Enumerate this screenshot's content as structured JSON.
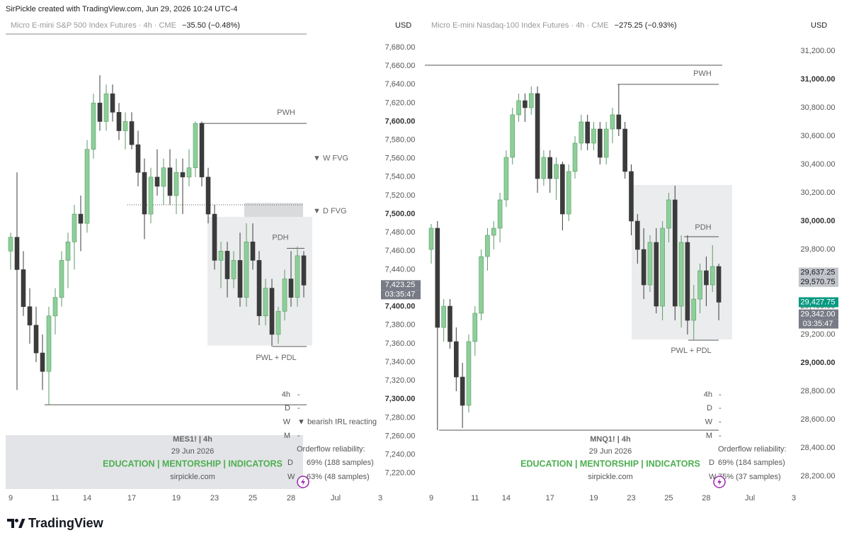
{
  "header": "SirPickle created with TradingView.com, Jun 29, 2026 10:24 UTC-4",
  "footer_logo": "TradingView",
  "chart_data": [
    {
      "type": "candlestick",
      "symbol": "Micro E-mini S&P 500 Index Futures · 4h · CME",
      "change": "−35.50 (−0.48%)",
      "currency": "USD",
      "up_color": "#8ccf98",
      "up_wick": "#5a9a66",
      "down_color": "#3b3b3b",
      "level_color": "#555555",
      "ylim": [
        7203,
        7693
      ],
      "yticks": [
        {
          "value": 7220,
          "label": "7,220.00"
        },
        {
          "value": 7240,
          "label": "7,240.00"
        },
        {
          "value": 7260,
          "label": "7,260.00"
        },
        {
          "value": 7280,
          "label": "7,280.00"
        },
        {
          "value": 7300,
          "label": "7,300.00"
        },
        {
          "value": 7320,
          "label": "7,320.00"
        },
        {
          "value": 7340,
          "label": "7,340.00"
        },
        {
          "value": 7360,
          "label": "7,360.00"
        },
        {
          "value": 7380,
          "label": "7,380.00"
        },
        {
          "value": 7400,
          "label": "7,400.00"
        },
        {
          "value": 7420,
          "label": "7,420.00"
        },
        {
          "value": 7440,
          "label": "7,440.00"
        },
        {
          "value": 7460,
          "label": "7,460.00"
        },
        {
          "value": 7480,
          "label": "7,480.00"
        },
        {
          "value": 7500,
          "label": "7,500.00"
        },
        {
          "value": 7520,
          "label": "7,520.00"
        },
        {
          "value": 7540,
          "label": "7,540.00"
        },
        {
          "value": 7560,
          "label": "7,560.00"
        },
        {
          "value": 7580,
          "label": "7,580.00"
        },
        {
          "value": 7600,
          "label": "7,600.00"
        },
        {
          "value": 7620,
          "label": "7,620.00"
        },
        {
          "value": 7640,
          "label": "7,640.00"
        },
        {
          "value": 7660,
          "label": "7,660.00"
        },
        {
          "value": 7680,
          "label": "7,680.00"
        }
      ],
      "categories": [
        "9",
        null,
        null,
        null,
        null,
        null,
        null,
        "11",
        null,
        null,
        null,
        null,
        "14",
        null,
        null,
        null,
        null,
        null,
        null,
        "17",
        null,
        null,
        null,
        null,
        null,
        null,
        "19",
        null,
        null,
        null,
        null,
        null,
        "23",
        null,
        null,
        null,
        null,
        null,
        "25",
        null,
        null,
        null,
        null,
        null,
        "28",
        null,
        null,
        null,
        null,
        null,
        null,
        "Jul",
        null,
        null,
        null,
        null,
        null,
        null,
        "3"
      ],
      "candles": [
        [
          7460,
          7480,
          7440,
          7475
        ],
        [
          7475,
          7545,
          7310,
          7440
        ],
        [
          7440,
          7460,
          7390,
          7400
        ],
        [
          7400,
          7420,
          7360,
          7380
        ],
        [
          7380,
          7400,
          7340,
          7350
        ],
        [
          7350,
          7370,
          7310,
          7330
        ],
        [
          7330,
          7400,
          7294,
          7390
        ],
        [
          7390,
          7420,
          7370,
          7410
        ],
        [
          7410,
          7460,
          7400,
          7450
        ],
        [
          7450,
          7480,
          7420,
          7470
        ],
        [
          7470,
          7510,
          7440,
          7500
        ],
        [
          7500,
          7520,
          7460,
          7490
        ],
        [
          7490,
          7580,
          7480,
          7570
        ],
        [
          7570,
          7630,
          7560,
          7620
        ],
        [
          7620,
          7650,
          7590,
          7600
        ],
        [
          7600,
          7640,
          7590,
          7630
        ],
        [
          7630,
          7640,
          7600,
          7610
        ],
        [
          7610,
          7620,
          7580,
          7590
        ],
        [
          7590,
          7610,
          7570,
          7600
        ],
        [
          7600,
          7610,
          7570,
          7575
        ],
        [
          7575,
          7590,
          7530,
          7545
        ],
        [
          7545,
          7560,
          7473,
          7500
        ],
        [
          7500,
          7550,
          7490,
          7540
        ],
        [
          7540,
          7570,
          7520,
          7530
        ],
        [
          7530,
          7560,
          7510,
          7550
        ],
        [
          7550,
          7570,
          7510,
          7520
        ],
        [
          7520,
          7560,
          7500,
          7545
        ],
        [
          7545,
          7560,
          7500,
          7540
        ],
        [
          7540,
          7570,
          7530,
          7550
        ],
        [
          7550,
          7600,
          7540,
          7598
        ],
        [
          7598,
          7600,
          7530,
          7540
        ],
        [
          7540,
          7550,
          7490,
          7500
        ],
        [
          7500,
          7510,
          7440,
          7450
        ],
        [
          7450,
          7470,
          7420,
          7460
        ],
        [
          7460,
          7470,
          7410,
          7430
        ],
        [
          7430,
          7460,
          7420,
          7450
        ],
        [
          7450,
          7480,
          7400,
          7410
        ],
        [
          7410,
          7490,
          7400,
          7470
        ],
        [
          7470,
          7490,
          7440,
          7450
        ],
        [
          7450,
          7460,
          7380,
          7390
        ],
        [
          7390,
          7430,
          7380,
          7420
        ],
        [
          7420,
          7430,
          7357,
          7370
        ],
        [
          7370,
          7400,
          7360,
          7395
        ],
        [
          7395,
          7440,
          7385,
          7430
        ],
        [
          7430,
          7460,
          7400,
          7410
        ],
        [
          7410,
          7465,
          7400,
          7455
        ],
        [
          7455,
          7460,
          7410,
          7423.25
        ],
        null,
        null,
        null,
        null,
        null,
        null,
        null,
        null,
        null,
        null,
        null,
        null
      ],
      "zones": [
        {
          "top": 7512,
          "bottom": 7496,
          "color": "#d9dadc"
        },
        {
          "top": 7497,
          "bottom": 7358,
          "color": "#ebecee"
        }
      ],
      "levels": [
        {
          "label": "PWH",
          "value": 7598
        },
        {
          "label": "PDH",
          "value": 7463
        },
        {
          "label": "PWL + PDL",
          "value": 7357
        },
        {
          "value": 7294
        },
        {
          "value": 7510,
          "dash": true
        }
      ],
      "annotations": [
        {
          "text": "▼ W FVG",
          "value": 7560
        },
        {
          "text": "▼ D FVG",
          "value": 7503
        }
      ],
      "price_labels": [
        {
          "value": 7423.25,
          "label": "7,423.25",
          "color": "#787b86",
          "text_color": "#ffffff"
        }
      ],
      "countdown": "03:35:47",
      "timeframes": [
        "4h",
        "D",
        "W",
        "M"
      ],
      "statuses": [
        "-",
        "-",
        "▼ bearish IRL reacting",
        "-"
      ],
      "reliability": {
        "title": "Orderflow reliability:",
        "rows": [
          [
            "D",
            "69% (188 samples)"
          ],
          [
            "W",
            "63% (48 samples)"
          ]
        ]
      },
      "watermark": {
        "title": "MES1! | 4h",
        "date": "29 Jun 2026",
        "tagline": "EDUCATION | MENTORSHIP | INDICATORS",
        "site": "sirpickle.com",
        "panel": true
      }
    },
    {
      "type": "candlestick",
      "symbol": "Micro E-mini Nasdaq-100 Index Futures · 4h · CME",
      "change": "−275.25 (−0.93%)",
      "currency": "USD",
      "up_color": "#8ccf98",
      "up_wick": "#5a9a66",
      "down_color": "#3b3b3b",
      "level_color": "#555555",
      "ylim": [
        28110,
        31310
      ],
      "yticks": [
        {
          "value": 28200,
          "label": "28,200.00"
        },
        {
          "value": 28400,
          "label": "28,400.00"
        },
        {
          "value": 28600,
          "label": "28,600.00"
        },
        {
          "value": 28800,
          "label": "28,800.00"
        },
        {
          "value": 29000,
          "label": "29,000.00"
        },
        {
          "value": 29200,
          "label": "29,200.00"
        },
        {
          "value": 29400,
          "label": "29,400.00"
        },
        {
          "value": 29600,
          "label": "29,600.00"
        },
        {
          "value": 29800,
          "label": "29,800.00"
        },
        {
          "value": 30000,
          "label": "30,000.00"
        },
        {
          "value": 30200,
          "label": "30,200.00"
        },
        {
          "value": 30400,
          "label": "30,400.00"
        },
        {
          "value": 30600,
          "label": "30,600.00"
        },
        {
          "value": 30800,
          "label": "30,800.00"
        },
        {
          "value": 31000,
          "label": "31,000.00"
        },
        {
          "value": 31200,
          "label": "31,200.00"
        }
      ],
      "categories": [
        "9",
        null,
        null,
        null,
        null,
        null,
        null,
        "11",
        null,
        null,
        null,
        null,
        "14",
        null,
        null,
        null,
        null,
        null,
        null,
        "17",
        null,
        null,
        null,
        null,
        null,
        null,
        "19",
        null,
        null,
        null,
        null,
        null,
        "23",
        null,
        null,
        null,
        null,
        null,
        "25",
        null,
        null,
        null,
        null,
        null,
        "28",
        null,
        null,
        null,
        null,
        null,
        null,
        "Jul",
        null,
        null,
        null,
        null,
        null,
        null,
        "3"
      ],
      "candles": [
        [
          29800,
          29980,
          29700,
          29950
        ],
        [
          29950,
          30000,
          28525,
          29250
        ],
        [
          29250,
          29450,
          29150,
          29400
        ],
        [
          29400,
          29450,
          29100,
          29150
        ],
        [
          29150,
          29250,
          28800,
          28900
        ],
        [
          28900,
          29000,
          28540,
          28700
        ],
        [
          28700,
          29200,
          28650,
          29150
        ],
        [
          29150,
          29400,
          29050,
          29350
        ],
        [
          29350,
          29800,
          29300,
          29750
        ],
        [
          29750,
          29950,
          29650,
          29900
        ],
        [
          29900,
          30000,
          29800,
          29950
        ],
        [
          29950,
          30200,
          29850,
          30150
        ],
        [
          30150,
          30500,
          30100,
          30450
        ],
        [
          30450,
          30800,
          30400,
          30750
        ],
        [
          30750,
          30900,
          30700,
          30850
        ],
        [
          30850,
          30900,
          30700,
          30800
        ],
        [
          30800,
          30950,
          30750,
          30900
        ],
        [
          30900,
          30950,
          30200,
          30300
        ],
        [
          30300,
          30500,
          30250,
          30450
        ],
        [
          30450,
          30500,
          30200,
          30300
        ],
        [
          30300,
          30450,
          30150,
          30400
        ],
        [
          30400,
          30420,
          29935,
          30050
        ],
        [
          30050,
          30400,
          30000,
          30350
        ],
        [
          30350,
          30600,
          30300,
          30550
        ],
        [
          30550,
          30750,
          30500,
          30700
        ],
        [
          30700,
          30750,
          30500,
          30550
        ],
        [
          30550,
          30700,
          30500,
          30650
        ],
        [
          30650,
          30700,
          30400,
          30450
        ],
        [
          30450,
          30700,
          30400,
          30650
        ],
        [
          30650,
          30800,
          30550,
          30750
        ],
        [
          30750,
          30965,
          30600,
          30650
        ],
        [
          30650,
          30700,
          30300,
          30350
        ],
        [
          30350,
          30400,
          29900,
          30000
        ],
        [
          30000,
          30050,
          29700,
          29800
        ],
        [
          29800,
          29950,
          29450,
          29550
        ],
        [
          29550,
          29900,
          29500,
          29850
        ],
        [
          29850,
          29950,
          29350,
          29400
        ],
        [
          29400,
          30000,
          29300,
          29950
        ],
        [
          29950,
          30200,
          29850,
          30150
        ],
        [
          30150,
          30250,
          29300,
          29400
        ],
        [
          29400,
          29900,
          29250,
          29850
        ],
        [
          29850,
          29900,
          29200,
          29300
        ],
        [
          29300,
          29550,
          29160,
          29450
        ],
        [
          29450,
          29700,
          29350,
          29650
        ],
        [
          29650,
          29750,
          29400,
          29550
        ],
        [
          29550,
          29830,
          29500,
          29680
        ],
        [
          29680,
          29700,
          29300,
          29427.75
        ],
        null,
        null,
        null,
        null,
        null,
        null,
        null,
        null,
        null,
        null,
        null,
        null
      ],
      "zones": [
        {
          "top": 30255,
          "bottom": 29165,
          "color": "#ebecee"
        }
      ],
      "levels": [
        {
          "label": "PWH",
          "value": 30965
        },
        {
          "label": "PDH",
          "value": 29890
        },
        {
          "label": "PWL + PDL",
          "value": 29160
        },
        {
          "value": 28525
        },
        {
          "value": 31100
        }
      ],
      "annotations": [],
      "price_labels": [
        {
          "value": 29637.25,
          "label": "29,637.25",
          "color": "#c3c5ca",
          "text_color": "#131722"
        },
        {
          "value": 29570.75,
          "label": "29,570.75",
          "color": "#c3c5ca",
          "text_color": "#131722"
        },
        {
          "value": 29427.75,
          "label": "29,427.75",
          "color": "#089981",
          "text_color": "#ffffff"
        },
        {
          "value": 29342.0,
          "label": "29,342.00",
          "color": "#787b86",
          "text_color": "#ffffff"
        }
      ],
      "countdown": "03:35:47",
      "timeframes": [
        "4h",
        "D",
        "W",
        "M"
      ],
      "statuses": [
        "-",
        "-",
        "-",
        "-"
      ],
      "reliability": {
        "title": "Orderflow reliability:",
        "rows": [
          [
            "D",
            "69% (184 samples)"
          ],
          [
            "W",
            "75% (37 samples)"
          ]
        ]
      },
      "watermark": {
        "title": "MNQ1! | 4h",
        "date": "29 Jun 2026",
        "tagline": "EDUCATION | MENTORSHIP | INDICATORS",
        "site": "sirpickle.com",
        "panel": false
      }
    }
  ]
}
